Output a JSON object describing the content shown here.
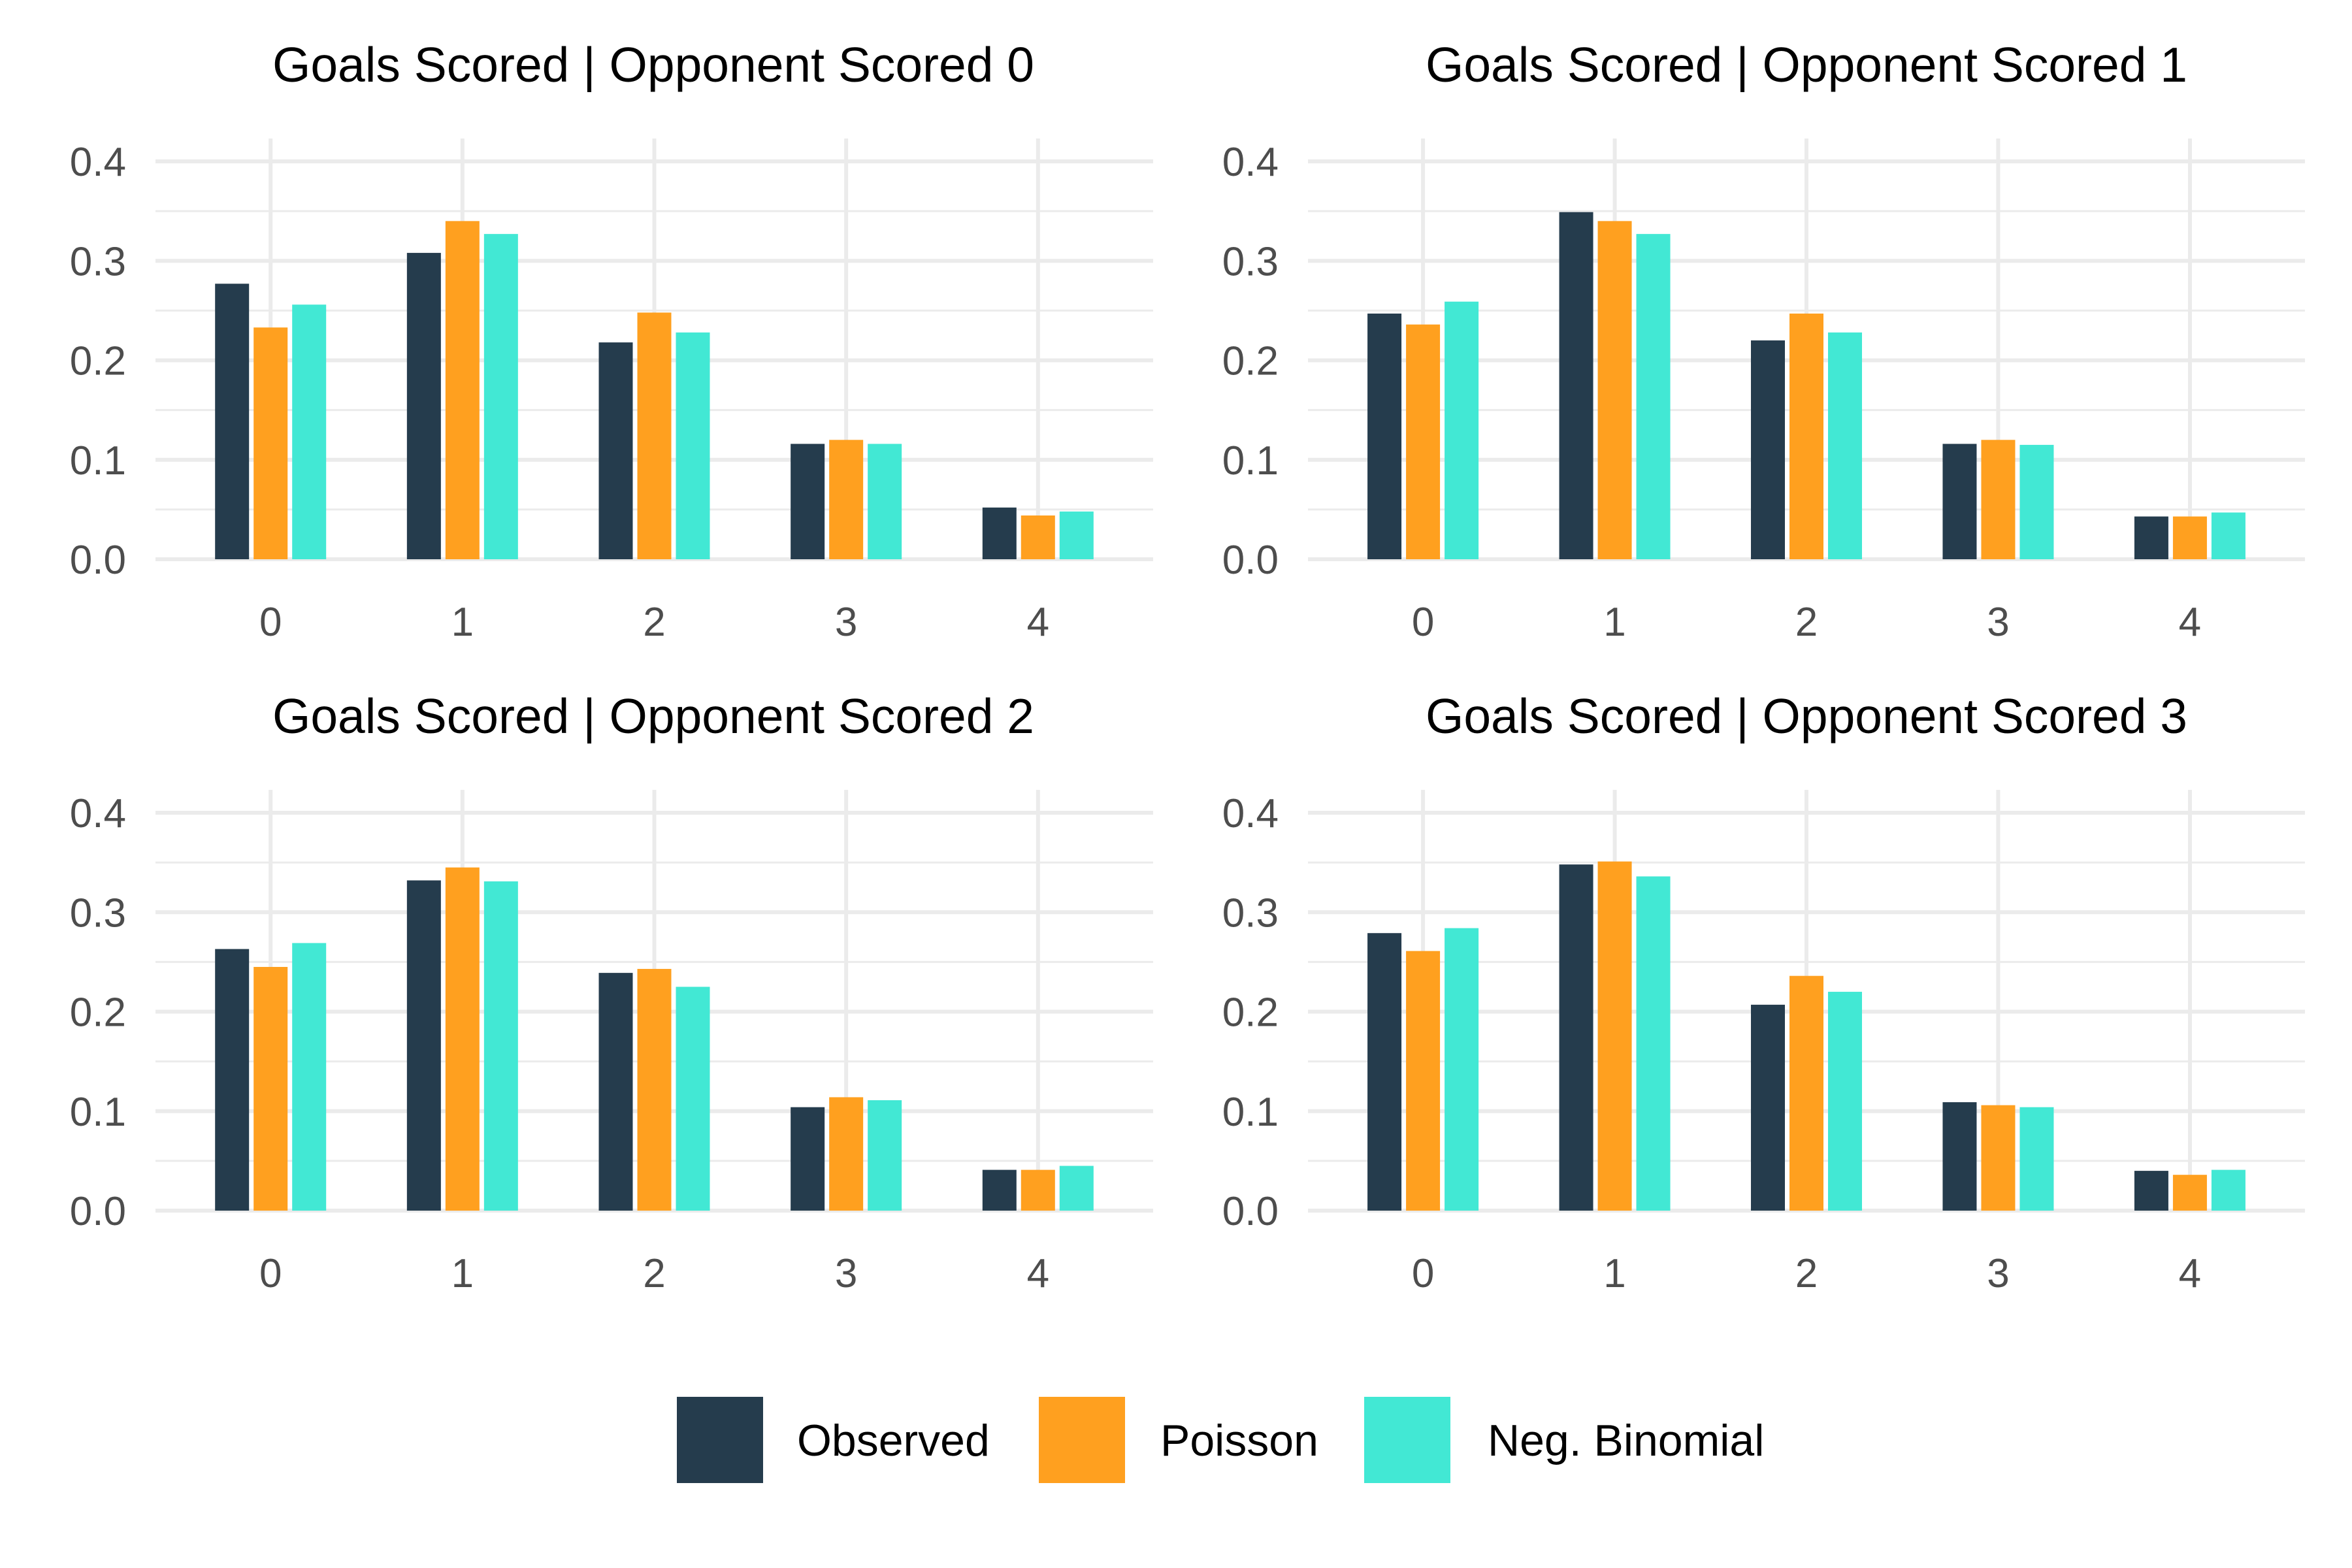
{
  "chart_data": [
    {
      "type": "bar",
      "title": "Goals Scored | Opponent Scored 0",
      "xlabel": "",
      "ylabel": "",
      "categories": [
        "0",
        "1",
        "2",
        "3",
        "4"
      ],
      "ylim": [
        0,
        0.42
      ],
      "yticks": [
        "0.0",
        "0.1",
        "0.2",
        "0.3",
        "0.4"
      ],
      "grid": true,
      "series": [
        {
          "name": "Observed",
          "values": [
            0.277,
            0.308,
            0.218,
            0.116,
            0.052
          ]
        },
        {
          "name": "Poisson",
          "values": [
            0.233,
            0.34,
            0.248,
            0.12,
            0.044
          ]
        },
        {
          "name": "Neg. Binomial",
          "values": [
            0.256,
            0.327,
            0.228,
            0.116,
            0.048
          ]
        }
      ]
    },
    {
      "type": "bar",
      "title": "Goals Scored | Opponent Scored 1",
      "xlabel": "",
      "ylabel": "",
      "categories": [
        "0",
        "1",
        "2",
        "3",
        "4"
      ],
      "ylim": [
        0,
        0.42
      ],
      "yticks": [
        "0.0",
        "0.1",
        "0.2",
        "0.3",
        "0.4"
      ],
      "grid": true,
      "series": [
        {
          "name": "Observed",
          "values": [
            0.247,
            0.349,
            0.22,
            0.116,
            0.043
          ]
        },
        {
          "name": "Poisson",
          "values": [
            0.236,
            0.34,
            0.247,
            0.12,
            0.043
          ]
        },
        {
          "name": "Neg. Binomial",
          "values": [
            0.259,
            0.327,
            0.228,
            0.115,
            0.047
          ]
        }
      ]
    },
    {
      "type": "bar",
      "title": "Goals Scored | Opponent Scored 2",
      "xlabel": "",
      "ylabel": "",
      "categories": [
        "0",
        "1",
        "2",
        "3",
        "4"
      ],
      "ylim": [
        0,
        0.42
      ],
      "yticks": [
        "0.0",
        "0.1",
        "0.2",
        "0.3",
        "0.4"
      ],
      "grid": true,
      "series": [
        {
          "name": "Observed",
          "values": [
            0.263,
            0.332,
            0.239,
            0.104,
            0.041
          ]
        },
        {
          "name": "Poisson",
          "values": [
            0.245,
            0.345,
            0.243,
            0.114,
            0.041
          ]
        },
        {
          "name": "Neg. Binomial",
          "values": [
            0.269,
            0.331,
            0.225,
            0.111,
            0.045
          ]
        }
      ]
    },
    {
      "type": "bar",
      "title": "Goals Scored | Opponent Scored 3",
      "xlabel": "",
      "ylabel": "",
      "categories": [
        "0",
        "1",
        "2",
        "3",
        "4"
      ],
      "ylim": [
        0,
        0.42
      ],
      "yticks": [
        "0.0",
        "0.1",
        "0.2",
        "0.3",
        "0.4"
      ],
      "grid": true,
      "series": [
        {
          "name": "Observed",
          "values": [
            0.279,
            0.348,
            0.207,
            0.109,
            0.04
          ]
        },
        {
          "name": "Poisson",
          "values": [
            0.261,
            0.351,
            0.236,
            0.106,
            0.036
          ]
        },
        {
          "name": "Neg. Binomial",
          "values": [
            0.284,
            0.336,
            0.22,
            0.104,
            0.041
          ]
        }
      ]
    }
  ],
  "legend": {
    "position": "bottom",
    "items": [
      {
        "label": "Observed",
        "color": "#253c4d"
      },
      {
        "label": "Poisson",
        "color": "#ffa01f"
      },
      {
        "label": "Neg. Binomial",
        "color": "#42e8d4"
      }
    ]
  },
  "colors": {
    "Observed": "#253c4d",
    "Poisson": "#ffa01f",
    "Neg. Binomial": "#42e8d4",
    "grid": "#ebebeb",
    "tick_text": "#4d4d4d",
    "title_text": "#000000"
  }
}
